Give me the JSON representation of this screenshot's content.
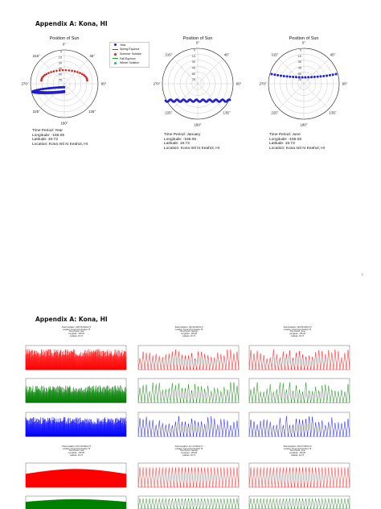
{
  "page1": {
    "heading": "Appendix A: Kona, HI",
    "plots": [
      {
        "title": "Position of Sun",
        "caption": [
          "Time Period: Year",
          "Longitude: -156.05",
          "Latitude: 19.73",
          "Location: Kona Intl At Keahol, HI"
        ]
      },
      {
        "title": "Position of Sun",
        "caption": [
          "Time Period: January",
          "Longitude: -156.05",
          "Latitude: 19.73",
          "Location: Kona Intl At Keahol, HI"
        ]
      },
      {
        "title": "Position of Sun",
        "caption": [
          "Time Period: June",
          "Longitude: -156.05",
          "Latitude: 19.73",
          "Location: Kona Intl At Keahol, HI"
        ]
      }
    ],
    "angle_labels": [
      "0°",
      "45°",
      "90°",
      "135°",
      "180°",
      "225°",
      "270°",
      "315°"
    ],
    "radial_labels": [
      "0",
      "15",
      "30",
      "45",
      "60",
      "75"
    ],
    "legend": [
      {
        "label": "Year",
        "color": "#1f1fd6",
        "kind": "dot"
      },
      {
        "label": "Spring Equinox",
        "color": "#e02020",
        "kind": "line"
      },
      {
        "label": "Summer Solstice",
        "color": "#d62020",
        "kind": "dot"
      },
      {
        "label": "Fall Equinox",
        "color": "#1f9e1f",
        "kind": "line"
      },
      {
        "label": "Winter Solstice",
        "color": "#1fa8b0",
        "kind": "dot"
      }
    ],
    "page_number": "1"
  },
  "page2": {
    "heading": "Appendix A: Kona, HI",
    "column_headers": [
      [
        "Total Insolation: 1965.59 kWh/m^2",
        "Location: Kona Intl At Keahol, HI",
        "Time Period: Year",
        "Longitude: -156.05",
        "Latitude: 19.73"
      ],
      [
        "Total Insolation: 136.34 kWh/m^2",
        "Location: Kona Intl At Keahol, HI",
        "Time Period: January",
        "Longitude: -156.05",
        "Latitude: 19.73"
      ],
      [
        "Total Insolation: 193.53 kWh/m^2",
        "Location: Kona Intl At Keahol, HI",
        "Time Period: June",
        "Longitude: -156.05",
        "Latitude: 19.73"
      ]
    ],
    "row_titles": [
      "Measured Total Radiation",
      "Measured Diffuse Horizontal Radiation",
      "Measured Total Normal Radiation"
    ],
    "lower_headers": [
      [
        "Total Insolation: 1671.35 kWh/m^2",
        "Location: Kona Intl At Keahol, HI",
        "Time Period: Year",
        "Longitude: -156.05",
        "Latitude: 19.73"
      ],
      [
        "Total Insolation: 117.11 kWh/m^2",
        "Location: Kona Intl At Keahol, HI",
        "Time Period: January",
        "Longitude: -156.05",
        "Latitude: 19.73"
      ],
      [
        "Total Insolation: 163.27 kWh/m^2",
        "Location: Kona Intl At Keahol, HI",
        "Time Period: June",
        "Longitude: -156.05",
        "Latitude: 19.73"
      ]
    ],
    "lower_row_titles": [
      "Modeled Total Radiation",
      "Modeled Diffuse Radiation"
    ],
    "colors": {
      "red": "#ff0000",
      "green": "#008000",
      "blue": "#0000ff"
    }
  }
}
